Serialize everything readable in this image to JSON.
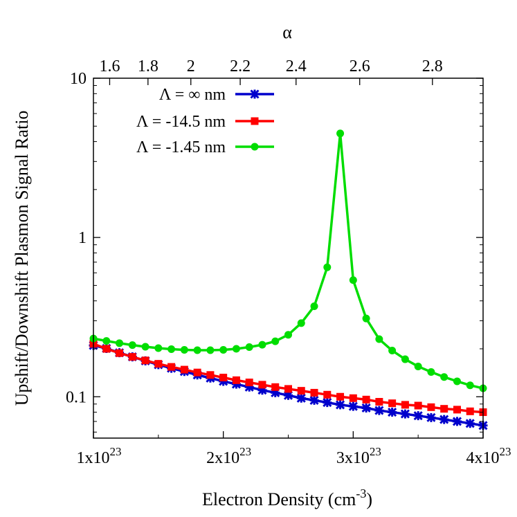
{
  "chart_data": {
    "type": "line",
    "title": "",
    "xlabel": "Electron Density (cm",
    "xlabel_sup": "-3",
    "xlabel_close": ")",
    "ylabel": "Upshift/Downshift Plasmon Signal Ratio",
    "x2label": "α",
    "xlim": [
      1e+23,
      4e+23
    ],
    "ylim": [
      0.055,
      10
    ],
    "yscale": "log",
    "grid": false,
    "legend_position": "top-left",
    "xticks": [
      {
        "value": 1e+23,
        "base": "1x10",
        "exp": "23"
      },
      {
        "value": 2e+23,
        "base": "2x10",
        "exp": "23"
      },
      {
        "value": 3e+23,
        "base": "3x10",
        "exp": "23"
      },
      {
        "value": 4e+23,
        "base": "4x10",
        "exp": "23"
      }
    ],
    "yticks": [
      {
        "value": 0.1,
        "label": "0.1"
      },
      {
        "value": 1,
        "label": "1"
      },
      {
        "value": 10,
        "label": "10"
      }
    ],
    "x2ticks": [
      {
        "value": 1.125e+23,
        "label": "1.6"
      },
      {
        "value": 1.42e+23,
        "label": "1.8"
      },
      {
        "value": 1.75e+23,
        "label": "2"
      },
      {
        "value": 2.13e+23,
        "label": "2.2"
      },
      {
        "value": 2.56e+23,
        "label": "2.4"
      },
      {
        "value": 3.05e+23,
        "label": "2.6"
      },
      {
        "value": 3.61e+23,
        "label": "2.8"
      }
    ],
    "series": [
      {
        "name": "Λ = ∞ nm",
        "color": "#0000cc",
        "marker": "star",
        "x": [
          1e+23,
          1.1e+23,
          1.2e+23,
          1.3e+23,
          1.4e+23,
          1.5e+23,
          1.6e+23,
          1.7e+23,
          1.8e+23,
          1.9e+23,
          2e+23,
          2.1e+23,
          2.2e+23,
          2.3e+23,
          2.4e+23,
          2.5e+23,
          2.6e+23,
          2.7e+23,
          2.8e+23,
          2.9e+23,
          3e+23,
          3.1e+23,
          3.2e+23,
          3.3e+23,
          3.4e+23,
          3.5e+23,
          3.6e+23,
          3.7e+23,
          3.8e+23,
          3.9e+23,
          4e+23
        ],
        "y": [
          0.21,
          0.201,
          0.189,
          0.178,
          0.168,
          0.159,
          0.151,
          0.144,
          0.137,
          0.131,
          0.125,
          0.12,
          0.115,
          0.11,
          0.106,
          0.102,
          0.098,
          0.095,
          0.092,
          0.089,
          0.087,
          0.085,
          0.082,
          0.08,
          0.078,
          0.076,
          0.074,
          0.072,
          0.07,
          0.068,
          0.066
        ]
      },
      {
        "name": "Λ = -14.5 nm",
        "color": "#ff0000",
        "marker": "square",
        "x": [
          1e+23,
          1.1e+23,
          1.2e+23,
          1.3e+23,
          1.4e+23,
          1.5e+23,
          1.6e+23,
          1.7e+23,
          1.8e+23,
          1.9e+23,
          2e+23,
          2.1e+23,
          2.2e+23,
          2.3e+23,
          2.4e+23,
          2.5e+23,
          2.6e+23,
          2.7e+23,
          2.8e+23,
          2.9e+23,
          3e+23,
          3.1e+23,
          3.2e+23,
          3.3e+23,
          3.4e+23,
          3.5e+23,
          3.6e+23,
          3.7e+23,
          3.8e+23,
          3.9e+23,
          4e+23
        ],
        "y": [
          0.215,
          0.2,
          0.188,
          0.178,
          0.169,
          0.161,
          0.154,
          0.148,
          0.142,
          0.137,
          0.132,
          0.127,
          0.123,
          0.119,
          0.115,
          0.112,
          0.109,
          0.106,
          0.103,
          0.1,
          0.098,
          0.096,
          0.093,
          0.091,
          0.089,
          0.088,
          0.086,
          0.084,
          0.083,
          0.081,
          0.08
        ]
      },
      {
        "name": "Λ = -1.45 nm",
        "color": "#00dd00",
        "marker": "circle",
        "x": [
          1e+23,
          1.1e+23,
          1.2e+23,
          1.3e+23,
          1.4e+23,
          1.5e+23,
          1.6e+23,
          1.7e+23,
          1.8e+23,
          1.9e+23,
          2e+23,
          2.1e+23,
          2.2e+23,
          2.3e+23,
          2.4e+23,
          2.5e+23,
          2.6e+23,
          2.7e+23,
          2.8e+23,
          2.9e+23,
          3e+23,
          3.1e+23,
          3.2e+23,
          3.3e+23,
          3.4e+23,
          3.5e+23,
          3.6e+23,
          3.7e+23,
          3.8e+23,
          3.9e+23,
          4e+23
        ],
        "y": [
          0.232,
          0.224,
          0.217,
          0.211,
          0.206,
          0.202,
          0.199,
          0.197,
          0.196,
          0.196,
          0.197,
          0.2,
          0.205,
          0.212,
          0.223,
          0.245,
          0.29,
          0.37,
          0.65,
          4.5,
          0.54,
          0.31,
          0.23,
          0.195,
          0.172,
          0.155,
          0.143,
          0.133,
          0.125,
          0.118,
          0.113
        ]
      }
    ]
  }
}
